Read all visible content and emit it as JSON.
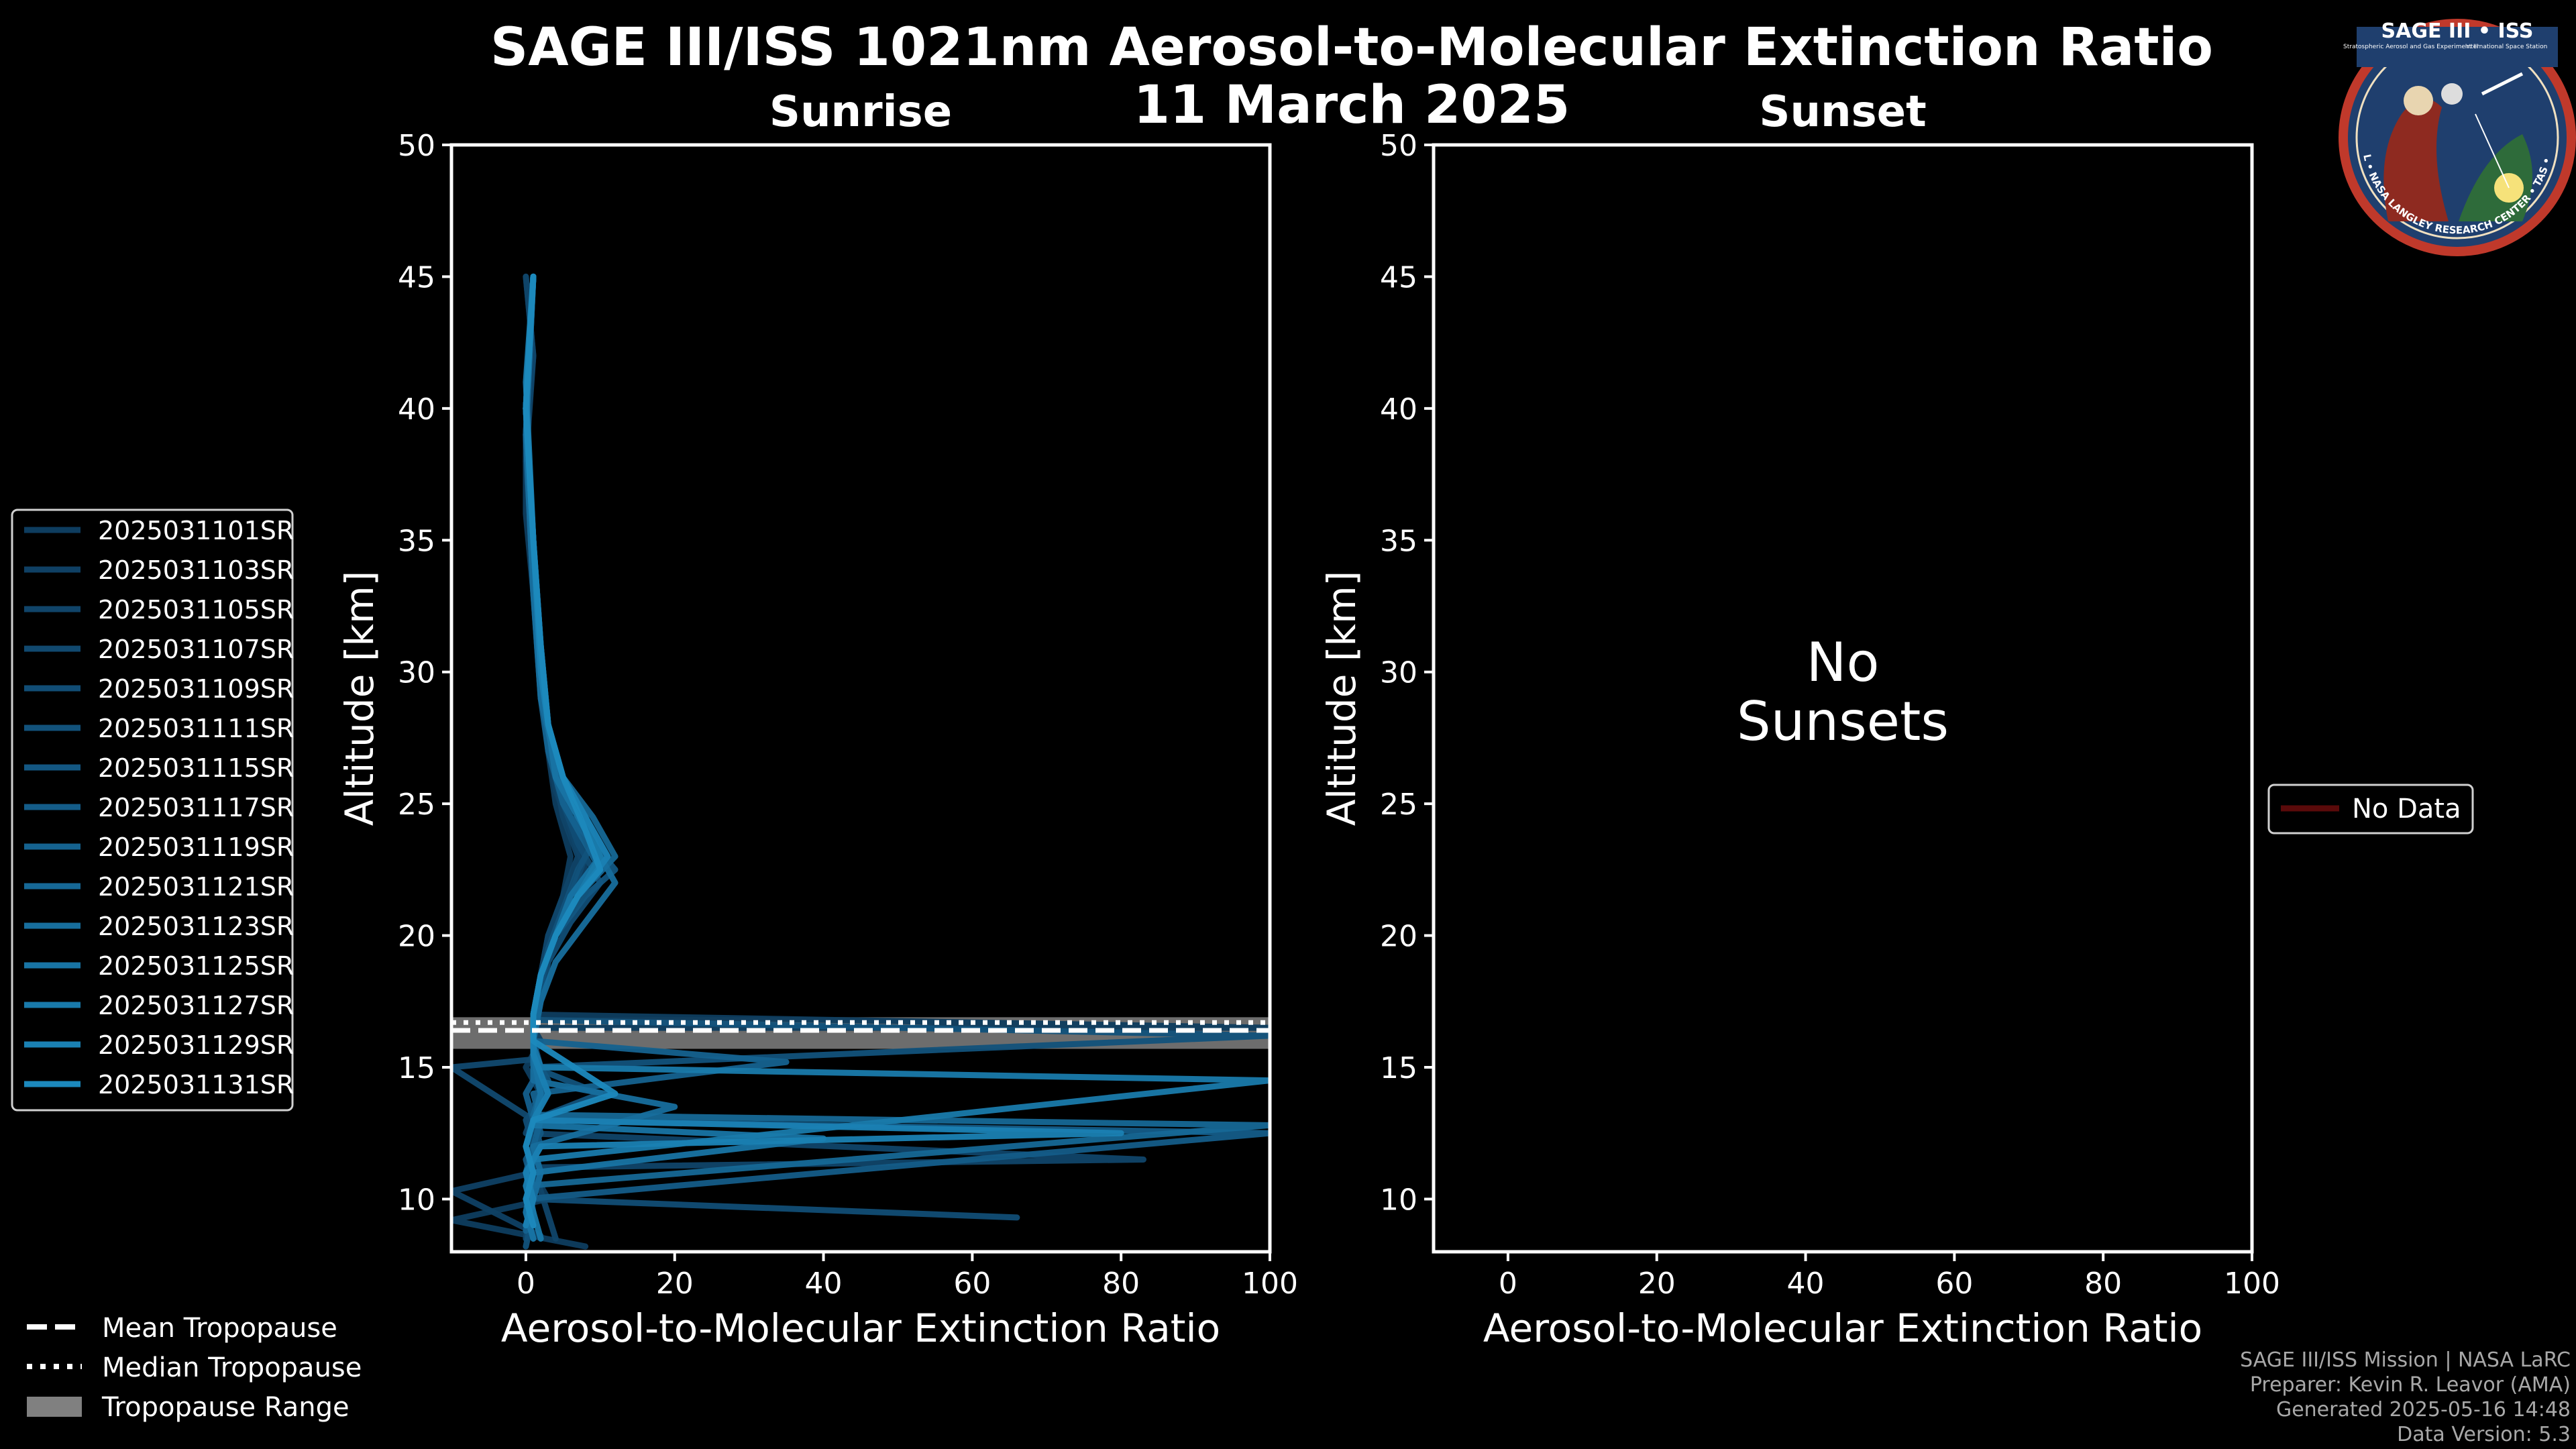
{
  "title": "SAGE III/ISS 1021nm Aerosol-to-Molecular Extinction Ratio",
  "subtitle": "11 March 2025",
  "logo": {
    "top_text": "SAGE III • ISS",
    "ring_text": "BALL • NASA LANGLEY RESEARCH CENTER • TAS • ESA",
    "fine_print_left": "Stratospheric Aerosol and Gas Experiment III",
    "fine_print_right": "International Space Station"
  },
  "credits": [
    "SAGE III/ISS Mission | NASA LaRC",
    "Preparer: Kevin R. Leavor (AMA)",
    "Generated 2025-05-16 14:48",
    "Data Version: 5.3"
  ],
  "tropopause_legend": {
    "mean": "Mean Tropopause",
    "median": "Median Tropopause",
    "range": "Tropopause Range"
  },
  "colors": {
    "background": "#000000",
    "axes": "#ffffff",
    "tropopause_range": "#808080",
    "no_data": "#5a0a0a"
  },
  "chart_data": [
    {
      "type": "line",
      "title": "Sunrise",
      "xlabel": "Aerosol-to-Molecular Extinction Ratio",
      "ylabel": "Altitude [km]",
      "xlim": [
        -10,
        100
      ],
      "ylim": [
        8,
        50
      ],
      "xticks": [
        0,
        20,
        40,
        60,
        80,
        100
      ],
      "yticks": [
        10,
        15,
        20,
        25,
        30,
        35,
        40,
        45,
        50
      ],
      "tropopause": {
        "mean_km": 16.4,
        "median_km": 16.7,
        "range_km": [
          15.7,
          16.9
        ]
      },
      "series": [
        {
          "name": "2025031101SR",
          "color": "#0e3d5f",
          "x": [
            8,
            -10,
            3,
            1,
            0,
            1,
            2,
            0,
            1,
            2,
            1,
            100,
            1,
            2,
            3,
            5,
            6,
            4,
            3,
            2,
            1,
            0,
            0,
            1,
            0
          ],
          "y": [
            8.2,
            9.2,
            10,
            11,
            12,
            13,
            14,
            15,
            15.5,
            16,
            16.5,
            16.5,
            17,
            18.5,
            20,
            21.5,
            23,
            25,
            27,
            30,
            33,
            36,
            39,
            42,
            45
          ]
        },
        {
          "name": "2025031103SR",
          "color": "#0f4064",
          "x": [
            2,
            -10,
            1,
            0,
            1,
            0,
            2,
            1,
            1,
            2,
            3,
            6,
            8,
            6,
            4,
            3,
            2,
            1,
            0,
            1
          ],
          "y": [
            8.6,
            10.3,
            11,
            12,
            13,
            14,
            15,
            16,
            17,
            18.5,
            20,
            21.5,
            22.5,
            24,
            25.5,
            27.5,
            30,
            34,
            39,
            45
          ]
        },
        {
          "name": "2025031105SR",
          "color": "#104469",
          "x": [
            4,
            1,
            83,
            0,
            2,
            1,
            1,
            2,
            3,
            5,
            7,
            5,
            4,
            3,
            2,
            1,
            0,
            1,
            0
          ],
          "y": [
            8.5,
            11.2,
            11.5,
            12.5,
            14,
            15.3,
            17,
            18.5,
            20,
            21.5,
            23,
            24.5,
            26,
            28,
            30,
            34,
            38,
            42,
            45
          ]
        },
        {
          "name": "2025031107SR",
          "color": "#11496f",
          "x": [
            0,
            1,
            0,
            2,
            1,
            -10,
            1,
            1,
            2,
            4,
            6,
            8,
            6,
            4,
            3,
            2,
            1,
            0,
            1
          ],
          "y": [
            8.5,
            10,
            11,
            12,
            13,
            15,
            15.3,
            17,
            18.5,
            20,
            21.5,
            23,
            24.5,
            26,
            28,
            30,
            34,
            40,
            45
          ]
        },
        {
          "name": "2025031109SR",
          "color": "#114d75",
          "x": [
            66,
            1,
            2,
            1,
            0,
            3,
            1,
            2,
            3,
            6,
            10,
            7,
            5,
            3,
            2,
            1,
            0,
            1
          ],
          "y": [
            9.3,
            10,
            11,
            12,
            13,
            14,
            16,
            17.5,
            19,
            20.5,
            22,
            23.5,
            25,
            27,
            30,
            35,
            40,
            45
          ]
        },
        {
          "name": "2025031111SR",
          "color": "#12527b",
          "x": [
            0,
            1,
            0,
            2,
            1,
            10,
            1,
            100,
            1,
            2,
            3,
            5,
            7,
            9,
            6,
            4,
            3,
            2,
            1,
            0,
            1
          ],
          "y": [
            8.2,
            9.5,
            11,
            12,
            13,
            14,
            15,
            16.2,
            16.8,
            18,
            19.5,
            21,
            22.5,
            23.5,
            24.5,
            26,
            28,
            30,
            35,
            40,
            45
          ]
        },
        {
          "name": "2025031115SR",
          "color": "#135782",
          "x": [
            1,
            0,
            1,
            0,
            2,
            1,
            3,
            1,
            1,
            2,
            4,
            8,
            12,
            9,
            6,
            4,
            3,
            2,
            1,
            0,
            1
          ],
          "y": [
            8.5,
            9.5,
            10.5,
            11.5,
            12.5,
            13.5,
            14.5,
            15.5,
            17,
            18.5,
            20,
            21.5,
            22.5,
            23.5,
            24.5,
            26,
            28,
            31,
            35,
            40,
            45
          ]
        },
        {
          "name": "2025031117SR",
          "color": "#145c88",
          "x": [
            1,
            0,
            100,
            1,
            0,
            2,
            1,
            1,
            2,
            4,
            7,
            11,
            8,
            5,
            3,
            2,
            1,
            0,
            1
          ],
          "y": [
            9,
            10,
            12.5,
            13,
            14,
            15,
            15.8,
            17,
            18.5,
            20,
            21.5,
            23,
            24.5,
            26,
            28,
            30,
            35,
            40,
            45
          ]
        },
        {
          "name": "2025031119SR",
          "color": "#15628f",
          "x": [
            0,
            1,
            0,
            1,
            2,
            1,
            35,
            1,
            1,
            2,
            4,
            7,
            10,
            8,
            5,
            3,
            2,
            1,
            0,
            1
          ],
          "y": [
            8.8,
            10,
            11,
            12,
            13,
            14,
            15.2,
            16,
            17,
            18.5,
            20,
            21.5,
            22.5,
            23.5,
            25,
            27,
            29,
            33,
            39,
            45
          ]
        },
        {
          "name": "2025031121SR",
          "color": "#166896",
          "x": [
            1,
            0,
            100,
            1,
            2,
            1,
            1,
            1,
            2,
            4,
            7,
            12,
            9,
            5,
            3,
            2,
            1,
            0,
            1
          ],
          "y": [
            9.5,
            10.5,
            12.8,
            13.2,
            14,
            15,
            16,
            17,
            18.5,
            20,
            21.5,
            23,
            24.5,
            26,
            28,
            31,
            35,
            40,
            45
          ]
        },
        {
          "name": "2025031123SR",
          "color": "#176e9d",
          "x": [
            0,
            1,
            2,
            1,
            20,
            1,
            1,
            2,
            4,
            8,
            12,
            9,
            6,
            4,
            2,
            1,
            0,
            1
          ],
          "y": [
            9,
            10,
            11,
            12,
            13.5,
            14.5,
            16,
            17.5,
            19,
            20.5,
            22,
            23.5,
            25,
            26.5,
            29,
            33,
            39,
            45
          ]
        },
        {
          "name": "2025031125SR",
          "color": "#1874a4",
          "x": [
            1,
            0,
            1,
            40,
            1,
            2,
            1,
            1,
            2,
            4,
            6,
            10,
            7,
            4,
            3,
            2,
            1,
            0,
            1
          ],
          "y": [
            8.5,
            9.5,
            11,
            12.3,
            12.8,
            14,
            15.5,
            17,
            18.5,
            20,
            21.5,
            23,
            24.5,
            26,
            28,
            31,
            35,
            40,
            45
          ]
        },
        {
          "name": "2025031127SR",
          "color": "#197aab",
          "x": [
            2,
            1,
            0,
            1,
            100,
            2,
            1,
            1,
            2,
            4,
            7,
            10,
            8,
            5,
            3,
            2,
            1,
            0,
            1
          ],
          "y": [
            8.5,
            9.5,
            10.5,
            11.5,
            14.5,
            15,
            15.8,
            17,
            18.5,
            20,
            21.5,
            23,
            24.5,
            26,
            28,
            30,
            35,
            41,
            45
          ]
        },
        {
          "name": "2025031129SR",
          "color": "#1a81b3",
          "x": [
            0,
            1,
            0,
            2,
            80,
            1,
            3,
            1,
            1,
            2,
            4,
            7,
            11,
            8,
            5,
            3,
            2,
            1,
            0,
            1
          ],
          "y": [
            9,
            10,
            11,
            12,
            12.5,
            13,
            14,
            15.5,
            17,
            18.5,
            20,
            21.5,
            23,
            24.5,
            26,
            28,
            30,
            35,
            40,
            45
          ]
        },
        {
          "name": "2025031131SR",
          "color": "#1c89bd",
          "x": [
            1,
            0,
            1,
            0,
            1,
            12,
            1,
            1,
            2,
            4,
            7,
            10,
            8,
            5,
            3,
            2,
            1,
            0,
            1
          ],
          "y": [
            9,
            10,
            11,
            12,
            13,
            14,
            16,
            17,
            18.5,
            20,
            21.5,
            22.5,
            24,
            26,
            28,
            31,
            35,
            40,
            45
          ]
        }
      ]
    },
    {
      "type": "line",
      "title": "Sunset",
      "xlabel": "Aerosol-to-Molecular Extinction Ratio",
      "ylabel": "Altitude [km]",
      "xlim": [
        -10,
        100
      ],
      "ylim": [
        8,
        50
      ],
      "xticks": [
        0,
        20,
        40,
        60,
        80,
        100
      ],
      "yticks": [
        10,
        15,
        20,
        25,
        30,
        35,
        40,
        45,
        50
      ],
      "annotation": [
        "No",
        "Sunsets"
      ],
      "legend": [
        "No Data"
      ],
      "series": []
    }
  ]
}
